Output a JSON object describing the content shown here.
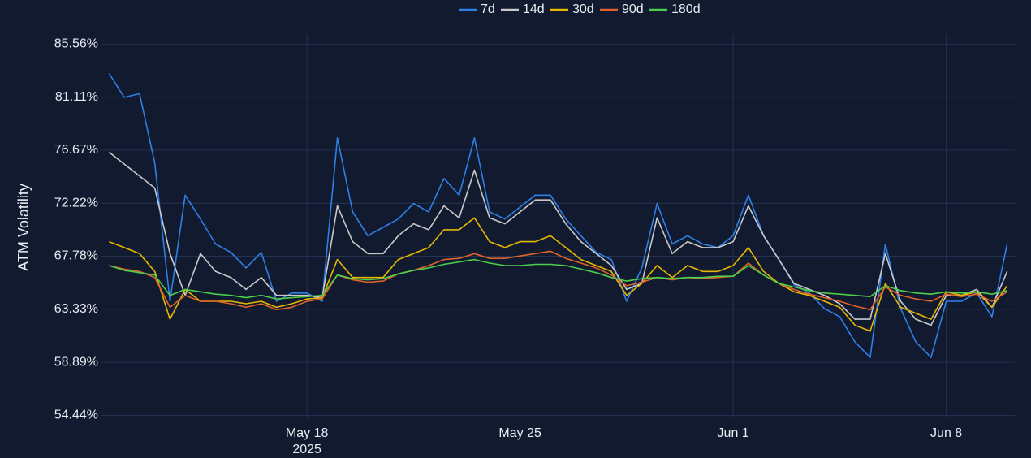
{
  "chart_data": {
    "type": "line",
    "y_label": "ATM Volatility",
    "x": [
      "2025-05-11T12:00",
      "2025-05-12T00:00",
      "2025-05-12T12:00",
      "2025-05-13T00:00",
      "2025-05-13T12:00",
      "2025-05-14T00:00",
      "2025-05-14T12:00",
      "2025-05-15T00:00",
      "2025-05-15T12:00",
      "2025-05-16T00:00",
      "2025-05-16T12:00",
      "2025-05-17T00:00",
      "2025-05-17T12:00",
      "2025-05-18T00:00",
      "2025-05-18T12:00",
      "2025-05-19T00:00",
      "2025-05-19T12:00",
      "2025-05-20T00:00",
      "2025-05-20T12:00",
      "2025-05-21T00:00",
      "2025-05-21T12:00",
      "2025-05-22T00:00",
      "2025-05-22T12:00",
      "2025-05-23T00:00",
      "2025-05-23T12:00",
      "2025-05-24T00:00",
      "2025-05-24T12:00",
      "2025-05-25T00:00",
      "2025-05-25T12:00",
      "2025-05-26T00:00",
      "2025-05-26T12:00",
      "2025-05-27T00:00",
      "2025-05-27T12:00",
      "2025-05-28T00:00",
      "2025-05-28T12:00",
      "2025-05-29T00:00",
      "2025-05-29T12:00",
      "2025-05-30T00:00",
      "2025-05-30T12:00",
      "2025-05-31T00:00",
      "2025-05-31T12:00",
      "2025-06-01T00:00",
      "2025-06-01T12:00",
      "2025-06-02T00:00",
      "2025-06-02T12:00",
      "2025-06-03T00:00",
      "2025-06-03T12:00",
      "2025-06-04T00:00",
      "2025-06-04T12:00",
      "2025-06-05T00:00",
      "2025-06-05T12:00",
      "2025-06-06T00:00",
      "2025-06-06T12:00",
      "2025-06-07T00:00",
      "2025-06-07T12:00",
      "2025-06-08T00:00",
      "2025-06-08T12:00",
      "2025-06-09T00:00",
      "2025-06-09T12:00",
      "2025-06-10T00:00"
    ],
    "series": [
      {
        "name": "7d",
        "color": "#2f7fe6",
        "values": [
          83.1,
          81.1,
          81.4,
          75.6,
          64.0,
          72.9,
          70.9,
          68.8,
          68.1,
          66.8,
          68.1,
          64.0,
          64.7,
          64.7,
          64.0,
          77.7,
          71.5,
          69.5,
          70.2,
          70.9,
          72.2,
          71.5,
          74.3,
          72.9,
          77.7,
          71.5,
          70.9,
          71.9,
          72.9,
          72.9,
          70.9,
          69.5,
          68.1,
          67.5,
          64.0,
          66.8,
          72.2,
          68.8,
          69.5,
          68.8,
          68.5,
          69.5,
          72.9,
          69.5,
          67.5,
          65.4,
          64.7,
          63.4,
          62.7,
          60.6,
          59.3,
          68.8,
          63.4,
          60.6,
          59.3,
          64.0,
          64.0,
          64.7,
          62.7,
          68.8
        ]
      },
      {
        "name": "14d",
        "color": "#c9c9c9",
        "values": [
          76.5,
          75.5,
          74.5,
          73.5,
          68,
          64.5,
          68,
          66.5,
          66,
          65,
          66,
          64.5,
          64.5,
          64.5,
          64.3,
          72,
          69,
          68,
          68,
          69.5,
          70.5,
          70,
          72,
          71,
          75,
          71,
          70.5,
          71.5,
          72.5,
          72.5,
          70.5,
          69,
          68,
          67,
          65,
          65.5,
          71,
          68,
          69,
          68.5,
          68.5,
          69,
          72,
          69.5,
          67.5,
          65.5,
          65,
          64.5,
          63.8,
          62.5,
          62.5,
          68,
          64,
          62.5,
          62,
          64.5,
          64.5,
          65,
          63.5,
          66.5
        ]
      },
      {
        "name": "30d",
        "color": "#e6b800",
        "values": [
          69,
          68.5,
          68,
          66.5,
          62.5,
          65,
          64,
          64,
          64,
          63.8,
          64,
          63.5,
          63.8,
          64.2,
          64.3,
          67.5,
          66,
          66,
          66,
          67.5,
          68,
          68.5,
          70,
          70,
          71,
          69,
          68.5,
          69,
          69,
          69.5,
          68.5,
          67.5,
          67,
          66.5,
          64.5,
          65.5,
          67,
          66,
          67,
          66.5,
          66.5,
          67,
          68.5,
          66.5,
          65.5,
          64.8,
          64.5,
          64,
          63.5,
          62,
          61.5,
          65.5,
          63.5,
          63,
          62.5,
          64.8,
          64.5,
          64.8,
          63.5,
          65.3
        ]
      },
      {
        "name": "90d",
        "color": "#e0622a",
        "values": [
          67,
          66.7,
          66.5,
          66,
          63.5,
          64.5,
          64,
          64,
          63.8,
          63.5,
          63.8,
          63.3,
          63.5,
          64,
          64.2,
          66.2,
          65.8,
          65.6,
          65.7,
          66.3,
          66.6,
          67,
          67.5,
          67.6,
          68,
          67.6,
          67.6,
          67.8,
          68,
          68.2,
          67.6,
          67.2,
          66.8,
          66.2,
          65.3,
          65.6,
          66,
          65.8,
          66,
          65.9,
          66,
          66.1,
          67.2,
          66.2,
          65.5,
          65,
          64.6,
          64.3,
          64,
          63.6,
          63.3,
          65.2,
          64.5,
          64.2,
          64,
          64.6,
          64.4,
          64.6,
          64,
          64.8
        ]
      },
      {
        "name": "180d",
        "color": "#4ccf4c",
        "values": [
          67,
          66.6,
          66.4,
          66.2,
          64.5,
          65,
          64.8,
          64.6,
          64.5,
          64.3,
          64.5,
          64.2,
          64.3,
          64.4,
          64.5,
          66.2,
          65.9,
          65.8,
          65.9,
          66.3,
          66.6,
          66.8,
          67.1,
          67.3,
          67.5,
          67.2,
          67,
          67,
          67.1,
          67.1,
          67,
          66.7,
          66.4,
          66,
          65.7,
          65.9,
          66,
          65.9,
          66,
          66,
          66.1,
          66.1,
          67,
          66.2,
          65.5,
          65.2,
          64.9,
          64.7,
          64.6,
          64.5,
          64.4,
          65.3,
          64.9,
          64.7,
          64.6,
          64.8,
          64.7,
          64.8,
          64.6,
          64.9
        ]
      }
    ],
    "xlim": [
      "2025-05-11T06:00",
      "2025-06-10T06:00"
    ],
    "xticks": [
      {
        "value": "2025-05-18",
        "label": "May 18\n2025"
      },
      {
        "value": "2025-05-25",
        "label": "May 25"
      },
      {
        "value": "2025-06-01",
        "label": "Jun 1"
      },
      {
        "value": "2025-06-08",
        "label": "Jun 8"
      }
    ],
    "ylim": [
      54.2,
      86.4
    ],
    "yticks": [
      {
        "value": 54.44,
        "label": "54.44%"
      },
      {
        "value": 58.89,
        "label": "58.89%"
      },
      {
        "value": 63.33,
        "label": "63.33%"
      },
      {
        "value": 67.78,
        "label": "67.78%"
      },
      {
        "value": 72.22,
        "label": "72.22%"
      },
      {
        "value": 76.67,
        "label": "76.67%"
      },
      {
        "value": 81.11,
        "label": "81.11%"
      },
      {
        "value": 85.56,
        "label": "85.56%"
      }
    ],
    "grid": true,
    "legend": "top"
  }
}
